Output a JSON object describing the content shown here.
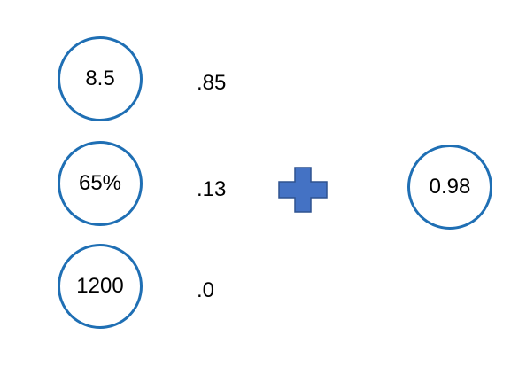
{
  "inputs": [
    {
      "value": "8.5",
      "weight": ".85"
    },
    {
      "value": "65%",
      "weight": ".13"
    },
    {
      "value": "1200",
      "weight": ".0"
    }
  ],
  "operator": {
    "icon": "plus-icon",
    "color": "#4472c4"
  },
  "output": {
    "value": "0.98"
  },
  "colors": {
    "circle_border": "#1f6fb4",
    "plus_fill": "#4472c4",
    "plus_stroke": "#2f528f"
  }
}
